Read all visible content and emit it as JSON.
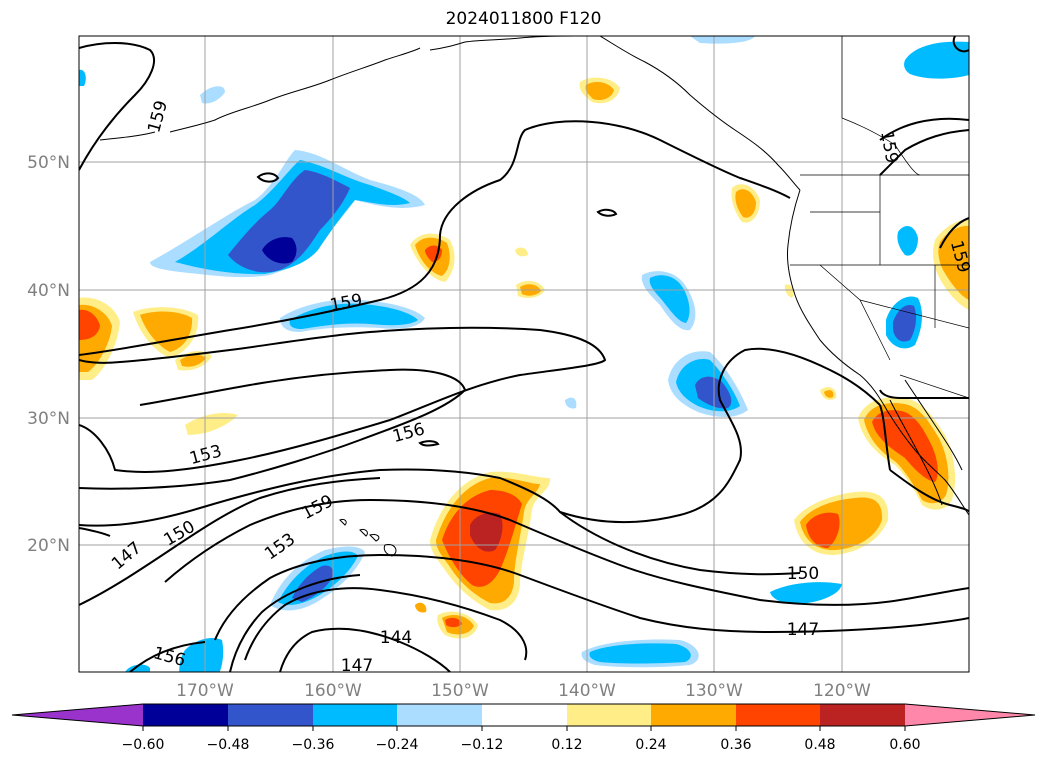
{
  "title": "2024011800 F120",
  "map": {
    "lat_labels": [
      "50°N",
      "40°N",
      "30°N",
      "20°N"
    ],
    "lon_labels": [
      "170°W",
      "160°W",
      "150°W",
      "140°W",
      "130°W",
      "120°W"
    ],
    "contour_labels": [
      "159",
      "159",
      "159",
      "156",
      "153",
      "150",
      "147",
      "159",
      "153",
      "156",
      "144",
      "147",
      "150",
      "147",
      "159"
    ],
    "land_color": "#ffffff",
    "coast_color": "#000000",
    "grid_color": "#a0a0a0"
  },
  "colorbar": {
    "colors": [
      "#9933cc",
      "#000099",
      "#3355cc",
      "#00bbff",
      "#aaddff",
      "#ffffff",
      "#ffee88",
      "#ffaa00",
      "#ff4400",
      "#bb2222",
      "#ff88aa"
    ],
    "tick_labels": [
      "−0.60",
      "−0.48",
      "−0.36",
      "−0.24",
      "−0.12",
      "0.12",
      "0.24",
      "0.36",
      "0.48",
      "0.60"
    ]
  }
}
